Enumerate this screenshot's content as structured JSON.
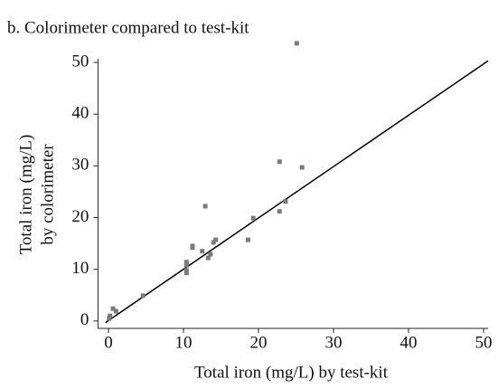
{
  "chart_data": {
    "type": "scatter",
    "title": "b. Colorimeter compared to test-kit",
    "xlabel": "Total iron (mg/L) by test-kit",
    "ylabel": [
      "Total iron (mg/L)",
      "by colorimeter"
    ],
    "x": [
      25.1,
      22.8,
      25.8,
      23.6,
      22.8,
      19.3,
      18.6,
      12.9,
      11.2,
      11.2,
      14.3,
      14.0,
      12.5,
      13.6,
      13.3,
      10.4,
      10.4,
      10.4,
      10.4,
      4.6,
      0.6,
      1.0,
      0.2,
      0.1
    ],
    "y": [
      53.7,
      30.8,
      29.7,
      23.1,
      21.2,
      19.9,
      15.7,
      22.2,
      14.5,
      14.2,
      15.7,
      15.2,
      13.5,
      12.9,
      12.2,
      11.4,
      10.8,
      9.8,
      9.3,
      4.9,
      2.4,
      1.9,
      1.0,
      0.5
    ],
    "color": "#7a7a7a",
    "reference_line": {
      "x": [
        -0.4,
        50.6
      ],
      "y": [
        -0.3,
        50.3
      ],
      "color": "#000000"
    },
    "xlim": [
      -1.4,
      50.6
    ],
    "ylim": [
      -0.9,
      50.7
    ],
    "xticks": [
      0,
      10,
      20,
      30,
      40,
      50
    ],
    "yticks": [
      0,
      10,
      20,
      30,
      40,
      50
    ]
  }
}
